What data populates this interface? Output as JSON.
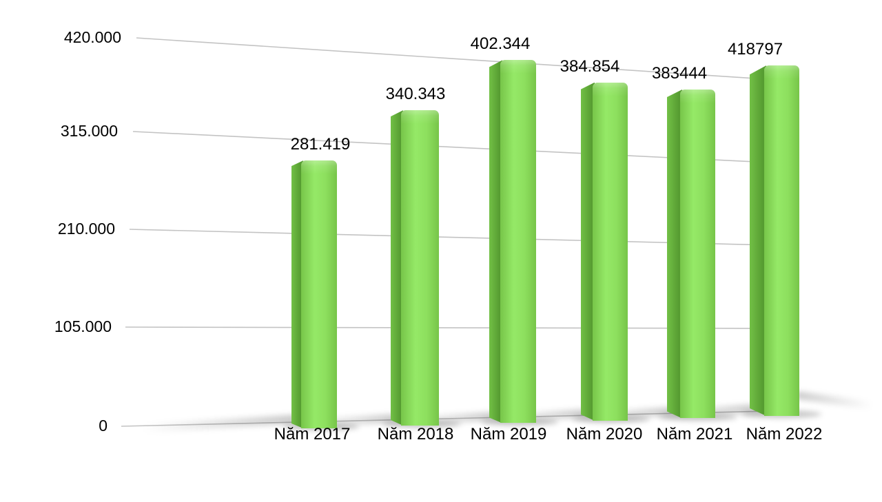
{
  "chart_data": {
    "type": "bar",
    "style": "3d-perspective",
    "title": "",
    "xlabel": "",
    "ylabel": "",
    "categories": [
      "Năm 2017",
      "Năm 2018",
      "Năm 2019",
      "Năm 2020",
      "Năm 2021",
      "Năm 2022"
    ],
    "values": [
      281419,
      340343,
      402344,
      384854,
      383444,
      418797
    ],
    "value_labels": [
      "281.419",
      "340.343",
      "402.344",
      "384.854",
      "383444",
      "418797"
    ],
    "series_name": "",
    "y_ticks": [
      "420.000",
      "315.000",
      "210.000",
      "105.000",
      "0"
    ],
    "y_tick_values": [
      420000,
      315000,
      210000,
      105000,
      0
    ],
    "ylim": [
      0,
      420000
    ],
    "grid": true,
    "legend_position": "none",
    "colors": {
      "background": "#ffffff",
      "text": "#000000",
      "gridline": "#c3c3c3",
      "bar_front_light": "#95e967",
      "bar_front_mid": "#8ddf5e",
      "bar_front_dark": "#77c549",
      "bar_side_light": "#72c046",
      "bar_side_dark": "#569c31",
      "shadow": "0,0,0"
    }
  }
}
